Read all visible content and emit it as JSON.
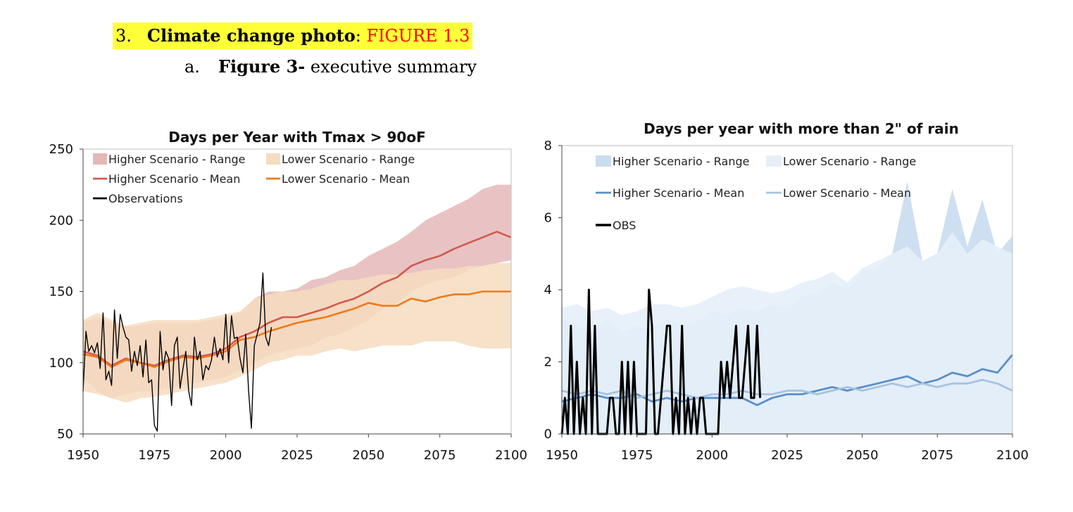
{
  "heading": {
    "number": "3.",
    "label": "Climate change photo",
    "separator": ": ",
    "figure_ref": "FIGURE 1.3",
    "highlight_color": "#ffff38",
    "figure_ref_color": "#ff0000"
  },
  "subheading": {
    "number": "a.",
    "label": "Figure 3-",
    "text": " executive summary"
  },
  "chart_data": [
    {
      "type": "line",
      "title": "Days per Year with Tmax > 90oF",
      "xlabel": "",
      "ylabel": "",
      "xlim": [
        1950,
        2100
      ],
      "ylim": [
        50,
        250
      ],
      "x_ticks": [
        1950,
        1975,
        2000,
        2025,
        2050,
        2075,
        2100
      ],
      "y_ticks": [
        50,
        100,
        150,
        200,
        250
      ],
      "grid": false,
      "legend_position": "top-left",
      "x": [
        1950,
        1955,
        1960,
        1965,
        1970,
        1975,
        1980,
        1985,
        1990,
        1995,
        2000,
        2005,
        2010,
        2015,
        2020,
        2025,
        2030,
        2035,
        2040,
        2045,
        2050,
        2055,
        2060,
        2065,
        2070,
        2075,
        2080,
        2085,
        2090,
        2095,
        2100
      ],
      "series": [
        {
          "name": "Higher Scenario - Range",
          "kind": "range",
          "color": "#e5b8b8",
          "lower": [
            90,
            80,
            75,
            78,
            80,
            80,
            82,
            84,
            86,
            88,
            90,
            95,
            100,
            105,
            108,
            110,
            112,
            118,
            120,
            125,
            130,
            138,
            142,
            150,
            155,
            158,
            160,
            165,
            168,
            170,
            172
          ],
          "upper": [
            128,
            132,
            128,
            125,
            126,
            128,
            128,
            128,
            128,
            130,
            132,
            135,
            145,
            150,
            150,
            152,
            158,
            160,
            165,
            168,
            175,
            180,
            185,
            192,
            200,
            205,
            210,
            215,
            222,
            225,
            225
          ]
        },
        {
          "name": "Lower Scenario - Range",
          "kind": "range",
          "color": "#f6dcc0",
          "lower": [
            80,
            78,
            75,
            72,
            75,
            76,
            78,
            80,
            82,
            84,
            86,
            90,
            95,
            100,
            102,
            105,
            105,
            108,
            110,
            108,
            110,
            112,
            112,
            112,
            115,
            115,
            115,
            112,
            110,
            110,
            110
          ],
          "upper": [
            130,
            135,
            130,
            126,
            128,
            130,
            130,
            130,
            130,
            132,
            134,
            136,
            145,
            148,
            150,
            150,
            152,
            155,
            158,
            158,
            160,
            162,
            162,
            163,
            165,
            166,
            166,
            168,
            168,
            170,
            170
          ]
        },
        {
          "name": "Higher Scenario - Mean",
          "kind": "line",
          "color": "#d05a4f",
          "values": [
            108,
            105,
            98,
            103,
            100,
            98,
            102,
            105,
            104,
            106,
            110,
            118,
            122,
            128,
            132,
            132,
            135,
            138,
            142,
            145,
            150,
            156,
            160,
            168,
            172,
            175,
            180,
            184,
            188,
            192,
            188
          ]
        },
        {
          "name": "Lower Scenario - Mean",
          "kind": "line",
          "color": "#ee7a1a",
          "values": [
            106,
            104,
            97,
            102,
            100,
            97,
            101,
            104,
            103,
            105,
            108,
            116,
            118,
            122,
            125,
            128,
            130,
            132,
            135,
            138,
            142,
            140,
            140,
            145,
            143,
            146,
            148,
            148,
            150,
            150,
            150
          ]
        },
        {
          "name": "Observations",
          "kind": "line",
          "color": "#000000",
          "x": [
            1950,
            1951,
            1952,
            1953,
            1954,
            1955,
            1956,
            1957,
            1958,
            1959,
            1960,
            1961,
            1962,
            1963,
            1964,
            1965,
            1966,
            1967,
            1968,
            1969,
            1970,
            1971,
            1972,
            1973,
            1974,
            1975,
            1976,
            1977,
            1978,
            1979,
            1980,
            1981,
            1982,
            1983,
            1984,
            1985,
            1986,
            1987,
            1988,
            1989,
            1990,
            1991,
            1992,
            1993,
            1994,
            1995,
            1996,
            1997,
            1998,
            1999,
            2000,
            2001,
            2002,
            2003,
            2004,
            2005,
            2006,
            2007,
            2008,
            2009,
            2010,
            2011,
            2012,
            2013,
            2014,
            2015,
            2016
          ],
          "values": [
            80,
            122,
            108,
            112,
            107,
            114,
            96,
            135,
            88,
            94,
            84,
            137,
            103,
            134,
            125,
            118,
            116,
            94,
            108,
            98,
            112,
            90,
            116,
            86,
            88,
            56,
            52,
            122,
            95,
            108,
            103,
            70,
            112,
            118,
            82,
            96,
            108,
            80,
            70,
            118,
            102,
            108,
            88,
            98,
            95,
            102,
            118,
            104,
            110,
            102,
            134,
            100,
            133,
            117,
            118,
            103,
            93,
            120,
            80,
            54,
            112,
            120,
            128,
            163,
            118,
            112,
            125
          ]
        }
      ]
    },
    {
      "type": "line",
      "title": "Days per year with more than 2\" of rain",
      "xlabel": "",
      "ylabel": "",
      "xlim": [
        1950,
        2100
      ],
      "ylim": [
        0,
        8
      ],
      "x_ticks": [
        1950,
        1975,
        2000,
        2025,
        2050,
        2075,
        2100
      ],
      "y_ticks": [
        0,
        2,
        4,
        6,
        8
      ],
      "grid": false,
      "legend_position": "top",
      "x": [
        1950,
        1955,
        1960,
        1965,
        1970,
        1975,
        1980,
        1985,
        1990,
        1995,
        2000,
        2005,
        2010,
        2015,
        2020,
        2025,
        2030,
        2035,
        2040,
        2045,
        2050,
        2055,
        2060,
        2065,
        2070,
        2075,
        2080,
        2085,
        2090,
        2095,
        2100
      ],
      "series": [
        {
          "name": "Higher Scenario - Range",
          "kind": "range",
          "color": "#c9dcf0",
          "lower": [
            0,
            0,
            0,
            0,
            0,
            0,
            0,
            0,
            0,
            0,
            0,
            0,
            0,
            0,
            0,
            0,
            0,
            0,
            0,
            0,
            0,
            0,
            0,
            0,
            0,
            0,
            0,
            0,
            0,
            0,
            0
          ],
          "upper": [
            3.2,
            3.0,
            2.8,
            3.2,
            2.8,
            3.0,
            2.9,
            3.2,
            3.0,
            3.1,
            3.4,
            3.3,
            3.5,
            3.4,
            3.6,
            3.5,
            3.8,
            3.9,
            4.2,
            4.0,
            4.5,
            4.6,
            5.0,
            7.0,
            4.8,
            5.0,
            6.8,
            5.2,
            6.5,
            5.0,
            5.5
          ]
        },
        {
          "name": "Lower Scenario - Range",
          "kind": "range",
          "color": "#e6eff8",
          "lower": [
            0,
            0,
            0,
            0,
            0,
            0,
            0,
            0,
            0,
            0,
            0,
            0,
            0,
            0,
            0,
            0,
            0,
            0,
            0,
            0,
            0,
            0,
            0,
            0,
            0,
            0,
            0,
            0,
            0,
            0,
            0
          ],
          "upper": [
            3.5,
            3.6,
            3.4,
            3.5,
            3.3,
            3.4,
            3.6,
            3.6,
            3.5,
            3.6,
            3.8,
            4.0,
            4.1,
            4.0,
            3.9,
            4.0,
            4.2,
            4.3,
            4.5,
            4.2,
            4.6,
            4.8,
            5.0,
            5.2,
            4.8,
            5.0,
            5.6,
            5.0,
            5.4,
            5.2,
            5.0
          ]
        },
        {
          "name": "Higher Scenario - Mean",
          "kind": "line",
          "color": "#5a8fc9",
          "values": [
            0.9,
            1.0,
            1.1,
            1.0,
            1.0,
            1.1,
            0.9,
            1.0,
            0.9,
            1.0,
            1.0,
            1.0,
            1.0,
            0.8,
            1.0,
            1.1,
            1.1,
            1.2,
            1.3,
            1.2,
            1.3,
            1.4,
            1.5,
            1.6,
            1.4,
            1.5,
            1.7,
            1.6,
            1.8,
            1.7,
            2.2
          ]
        },
        {
          "name": "Lower Scenario - Mean",
          "kind": "line",
          "color": "#a7c3e2",
          "values": [
            1.2,
            1.1,
            1.2,
            1.1,
            1.2,
            1.0,
            1.1,
            1.2,
            1.1,
            1.0,
            1.1,
            1.1,
            1.2,
            1.1,
            1.1,
            1.2,
            1.2,
            1.1,
            1.2,
            1.3,
            1.2,
            1.3,
            1.4,
            1.3,
            1.4,
            1.3,
            1.4,
            1.4,
            1.5,
            1.4,
            1.2
          ]
        },
        {
          "name": "OBS",
          "kind": "line",
          "color": "#000000",
          "x": [
            1950,
            1951,
            1952,
            1953,
            1954,
            1955,
            1956,
            1957,
            1958,
            1959,
            1960,
            1961,
            1962,
            1963,
            1964,
            1965,
            1966,
            1967,
            1968,
            1969,
            1970,
            1971,
            1972,
            1973,
            1974,
            1975,
            1976,
            1977,
            1978,
            1979,
            1980,
            1981,
            1982,
            1983,
            1984,
            1985,
            1986,
            1987,
            1988,
            1989,
            1990,
            1991,
            1992,
            1993,
            1994,
            1995,
            1996,
            1997,
            1998,
            1999,
            2000,
            2001,
            2002,
            2003,
            2004,
            2005,
            2006,
            2007,
            2008,
            2009,
            2010,
            2011,
            2012,
            2013,
            2014,
            2015,
            2016
          ],
          "values": [
            0,
            1,
            0,
            3,
            0,
            2,
            0,
            1,
            0,
            4,
            0,
            3,
            0,
            0,
            0,
            0,
            1,
            1,
            0,
            0,
            2,
            0,
            2,
            0,
            2,
            0,
            0,
            0,
            0,
            4,
            3,
            0,
            0,
            1,
            2,
            3,
            3,
            0,
            1,
            0,
            3,
            0,
            1,
            0,
            1,
            0,
            1,
            1,
            0,
            0,
            0,
            0,
            0,
            2,
            1,
            2,
            1,
            2,
            3,
            1,
            1,
            2,
            3,
            1,
            1,
            3,
            1
          ]
        }
      ]
    }
  ]
}
